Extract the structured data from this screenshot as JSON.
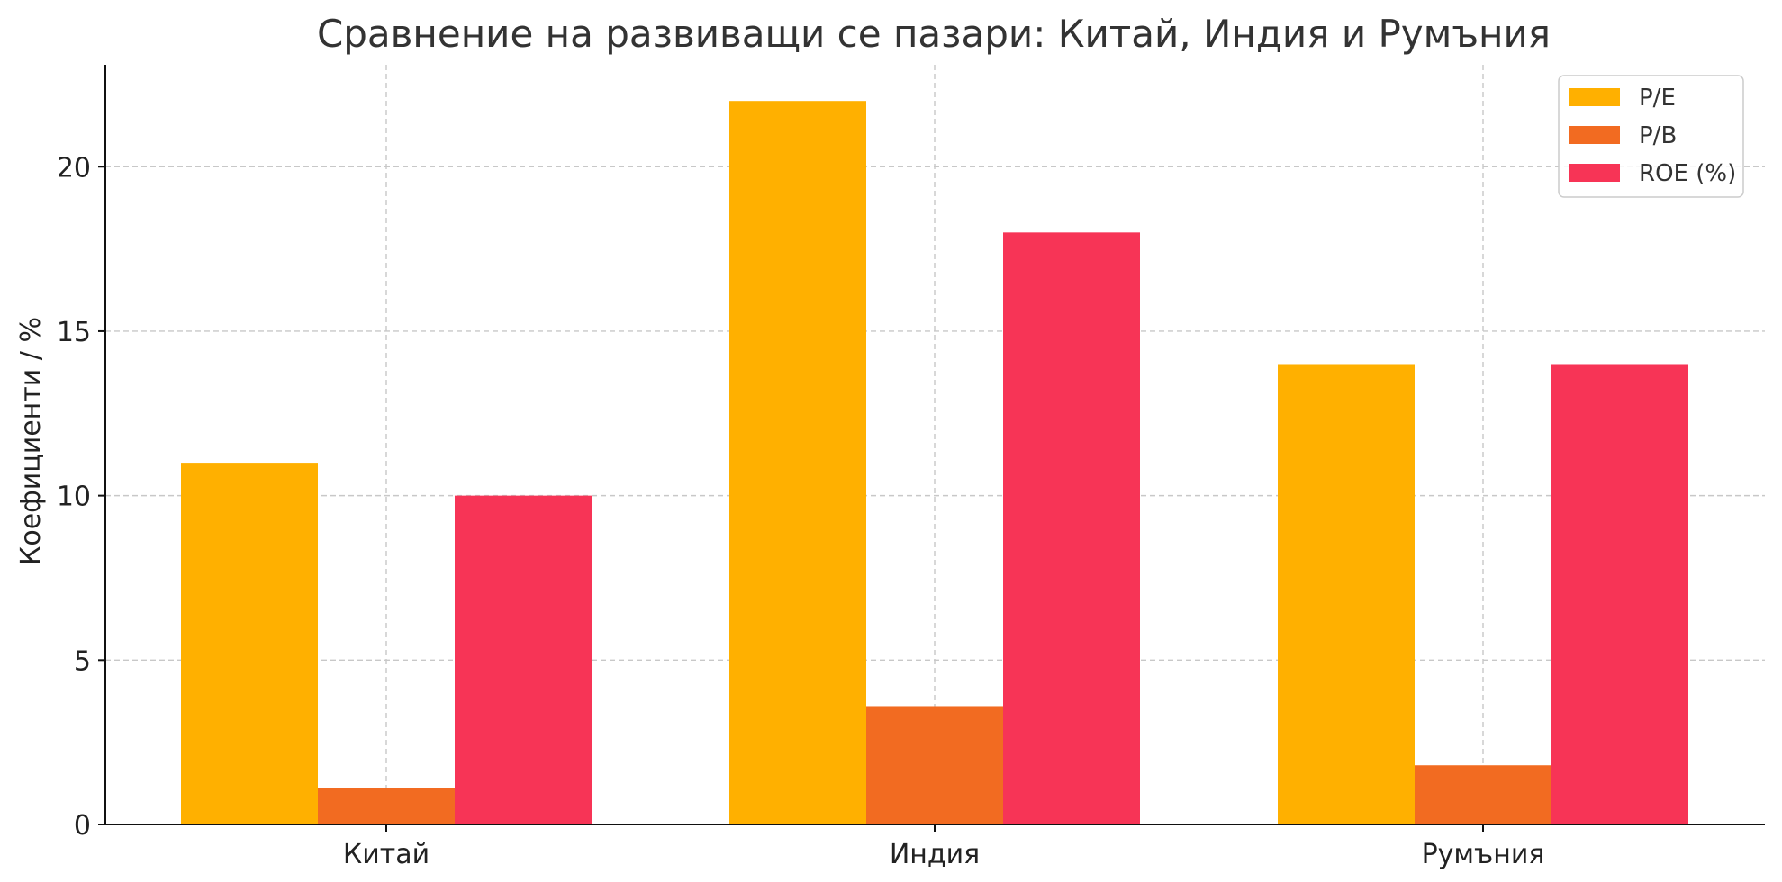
{
  "chart_data": {
    "type": "bar",
    "title": "Сравнение на развиващи се пазари: Китай, Индия и Румъния",
    "xlabel": "",
    "ylabel": "Коефициенти / %",
    "categories": [
      "Китай",
      "Индия",
      "Румъния"
    ],
    "series": [
      {
        "name": "P/E",
        "values": [
          11,
          22,
          14
        ],
        "color": "#FFB000"
      },
      {
        "name": "P/B",
        "values": [
          1.1,
          3.6,
          1.8
        ],
        "color": "#F26B21"
      },
      {
        "name": "ROE (%)",
        "values": [
          10,
          18,
          14
        ],
        "color": "#F73456"
      }
    ],
    "ylim": [
      0,
      23.1
    ],
    "yticks": [
      0,
      5,
      10,
      15,
      20
    ],
    "grid": true,
    "legend_position": "top-right"
  }
}
